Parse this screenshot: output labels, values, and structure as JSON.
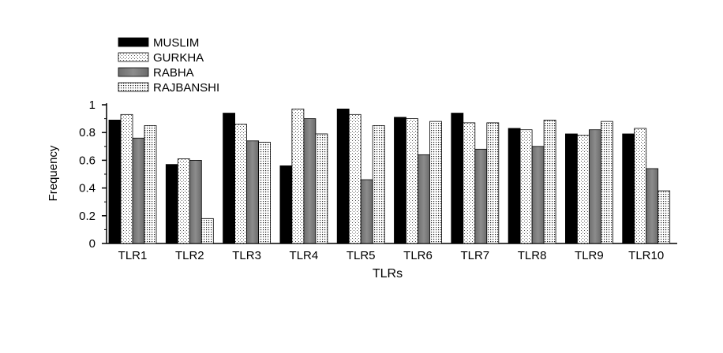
{
  "chart_data": {
    "type": "bar",
    "title": "",
    "xlabel": "TLRs",
    "ylabel": "Frequency",
    "ylim": [
      0,
      1
    ],
    "yticks": [
      0,
      0.2,
      0.4,
      0.6,
      0.8,
      1
    ],
    "ytick_labels": [
      "0",
      "0.2",
      "0.4",
      "0.6",
      "0.8",
      "1"
    ],
    "grid": false,
    "legend_position": "top-left",
    "categories": [
      "TLR1",
      "TLR2",
      "TLR3",
      "TLR4",
      "TLR5",
      "TLR6",
      "TLR7",
      "TLR8",
      "TLR9",
      "TLR10"
    ],
    "series": [
      {
        "name": "MUSLIM",
        "fill": "solid-black",
        "values": [
          0.89,
          0.57,
          0.94,
          0.56,
          0.97,
          0.91,
          0.94,
          0.83,
          0.79,
          0.79
        ]
      },
      {
        "name": "GURKHA",
        "fill": "fine-dots",
        "values": [
          0.93,
          0.61,
          0.86,
          0.97,
          0.93,
          0.9,
          0.87,
          0.82,
          0.78,
          0.83
        ]
      },
      {
        "name": "RABHA",
        "fill": "gray-gradient",
        "values": [
          0.76,
          0.6,
          0.74,
          0.9,
          0.46,
          0.64,
          0.68,
          0.7,
          0.82,
          0.54
        ]
      },
      {
        "name": "RAJBANSHI",
        "fill": "dense-dots",
        "values": [
          0.85,
          0.18,
          0.73,
          0.79,
          0.85,
          0.88,
          0.87,
          0.89,
          0.88,
          0.38
        ]
      }
    ]
  }
}
